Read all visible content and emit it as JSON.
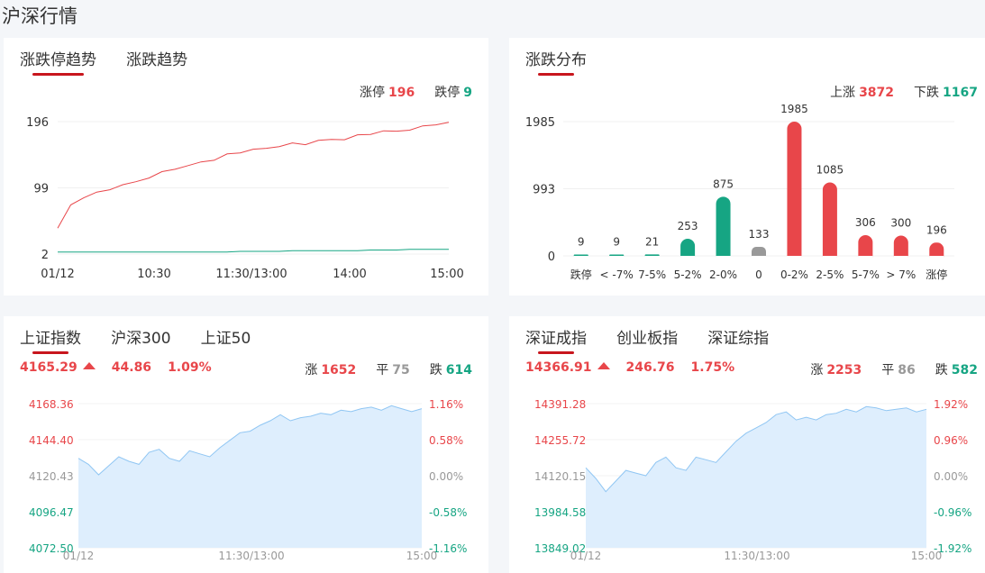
{
  "page": {
    "title": "沪深行情"
  },
  "panels": {
    "limit": {
      "tabs": [
        {
          "label": "涨跌停趋势",
          "active": true
        },
        {
          "label": "涨跌趋势",
          "active": false
        }
      ],
      "stats": {
        "up_label": "涨停",
        "up": "196",
        "down_label": "跌停",
        "down": "9"
      }
    },
    "dist": {
      "tabs": [
        {
          "label": "涨跌分布",
          "active": true
        }
      ],
      "stats": {
        "up_label": "上涨",
        "up": "3872",
        "down_label": "下跌",
        "down": "1167"
      }
    },
    "sh": {
      "tabs": [
        {
          "label": "上证指数",
          "active": true
        },
        {
          "label": "沪深300",
          "active": false
        },
        {
          "label": "上证50",
          "active": false
        }
      ],
      "price": "4165.29",
      "change": "44.86",
      "pct": "1.09%",
      "stats": {
        "up_label": "涨",
        "up": "1652",
        "flat_label": "平",
        "flat": "75",
        "down_label": "跌",
        "down": "614"
      }
    },
    "sz": {
      "tabs": [
        {
          "label": "深证成指",
          "active": true
        },
        {
          "label": "创业板指",
          "active": false
        },
        {
          "label": "深证综指",
          "active": false
        }
      ],
      "price": "14366.91",
      "change": "246.76",
      "pct": "1.75%",
      "stats": {
        "up_label": "涨",
        "up": "2253",
        "flat_label": "平",
        "flat": "86",
        "down_label": "跌",
        "down": "582"
      }
    }
  },
  "colors": {
    "red": "#e8464a",
    "green": "#16a583",
    "grey": "#999999",
    "fill": "#deeefd",
    "line": "#90c6f3"
  },
  "chart_data": [
    {
      "type": "line",
      "ylim": [
        2,
        196
      ],
      "y_ticks": [
        "196",
        "99",
        "2"
      ],
      "x_ticks": [
        "01/12",
        "10:30",
        "11:30/13:00",
        "14:00",
        "15:00"
      ],
      "series": [
        {
          "key": "up",
          "values": [
            40,
            74,
            86,
            92,
            97,
            102,
            108,
            115,
            122,
            127,
            130,
            137,
            141,
            148,
            151,
            154,
            157,
            161,
            164,
            163,
            167,
            170,
            171,
            176,
            178,
            181,
            182,
            185,
            189,
            192,
            195
          ]
        },
        {
          "key": "down",
          "values": [
            5,
            5,
            5,
            5,
            5,
            5,
            5,
            5,
            5,
            5,
            5,
            5,
            5,
            5,
            6,
            6,
            6,
            6,
            7,
            7,
            7,
            7,
            7,
            7,
            8,
            8,
            8,
            9,
            9,
            9,
            9
          ]
        }
      ]
    },
    {
      "type": "bar",
      "ylim": [
        0,
        1985
      ],
      "y_ticks": [
        "1985",
        "993",
        "0"
      ],
      "categories": [
        "跌停",
        "< -7%",
        "7-5%",
        "5-2%",
        "2-0%",
        "0",
        "0-2%",
        "2-5%",
        "5-7%",
        "> 7%",
        "涨停"
      ],
      "values": [
        9,
        9,
        21,
        253,
        875,
        133,
        1985,
        1085,
        306,
        300,
        196
      ],
      "bar_colors": [
        "green",
        "green",
        "green",
        "green",
        "green",
        "grey",
        "red",
        "red",
        "red",
        "red",
        "red"
      ]
    },
    {
      "type": "area",
      "ylim": [
        4072.5,
        4168.36
      ],
      "y_ticks_left": [
        "4168.36",
        "4144.40",
        "4120.43",
        "4096.47",
        "4072.50"
      ],
      "y_ticks_right": [
        "1.16%",
        "0.58%",
        "0.00%",
        "-0.58%",
        "-1.16%"
      ],
      "x_ticks": [
        "01/12",
        "11:30/13:00",
        "15:00"
      ],
      "values": [
        4132,
        4128,
        4121,
        4127,
        4133,
        4130,
        4128,
        4136,
        4138,
        4132,
        4130,
        4137,
        4135,
        4133,
        4139,
        4144,
        4149,
        4150,
        4154,
        4157,
        4161,
        4157,
        4159,
        4160,
        4162,
        4161,
        4164,
        4163,
        4165,
        4166,
        4164,
        4167,
        4165,
        4163,
        4165
      ]
    },
    {
      "type": "area",
      "ylim": [
        13849.02,
        14391.28
      ],
      "y_ticks_left": [
        "14391.28",
        "14255.72",
        "14120.15",
        "13984.58",
        "13849.02"
      ],
      "y_ticks_right": [
        "1.92%",
        "0.96%",
        "0.00%",
        "-0.96%",
        "-1.92%"
      ],
      "x_ticks": [
        "01/12",
        "11:30/13:00",
        "15:00"
      ],
      "values": [
        14150,
        14110,
        14060,
        14100,
        14140,
        14130,
        14120,
        14170,
        14190,
        14150,
        14140,
        14190,
        14180,
        14170,
        14210,
        14250,
        14280,
        14300,
        14320,
        14350,
        14360,
        14330,
        14340,
        14330,
        14350,
        14355,
        14370,
        14360,
        14380,
        14375,
        14365,
        14370,
        14375,
        14360,
        14370
      ]
    }
  ]
}
